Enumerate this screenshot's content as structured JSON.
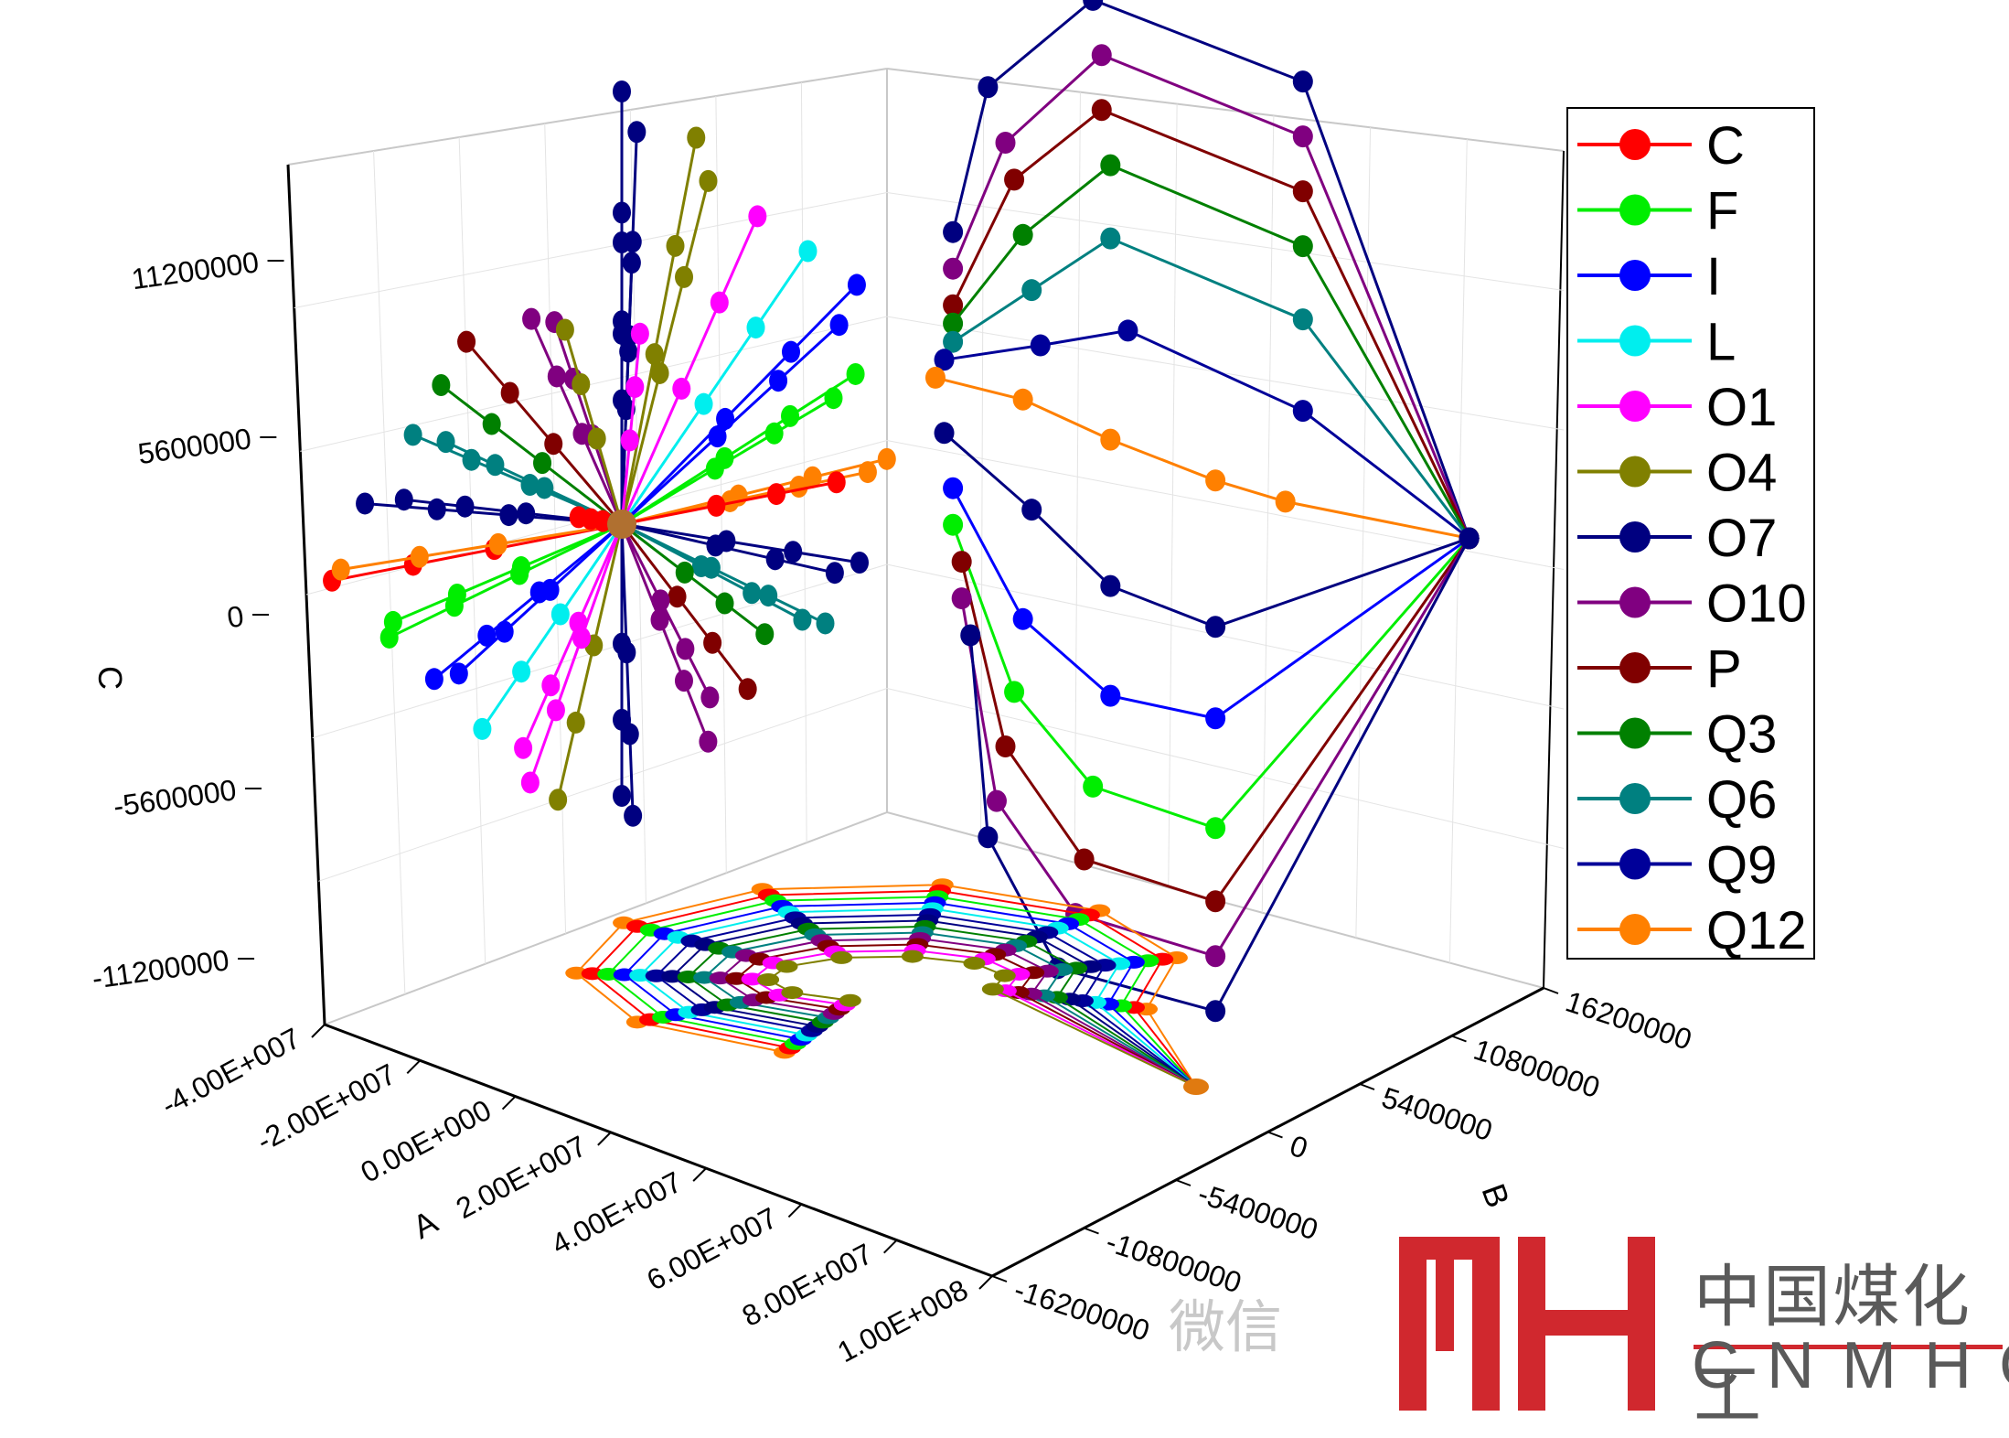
{
  "chart_data": {
    "type": "line",
    "subtype": "3d-projection",
    "title": "",
    "xlabel": "A",
    "ylabel": "B",
    "zlabel": "C",
    "axes": {
      "A": {
        "ticks": [
          "-4.00E+007",
          "-2.00E+007",
          "0.00E+000",
          "2.00E+007",
          "4.00E+007",
          "6.00E+007",
          "8.00E+007",
          "1.00E+008"
        ],
        "range": [
          -40000000,
          100000000
        ]
      },
      "B": {
        "ticks": [
          "-16200000",
          "-10800000",
          "-5400000",
          "0",
          "5400000",
          "10800000",
          "16200000"
        ],
        "range": [
          -16200000,
          16200000
        ]
      },
      "C": {
        "ticks": [
          "-11200000",
          "-5600000",
          "0",
          "5600000",
          "11200000"
        ],
        "range": [
          -14000000,
          14000000
        ]
      }
    },
    "grid": true,
    "legend_position": "top-right",
    "series": [
      {
        "name": "C",
        "color": "#ff0000"
      },
      {
        "name": "F",
        "color": "#00ee00"
      },
      {
        "name": "I",
        "color": "#0000ff"
      },
      {
        "name": "L",
        "color": "#00eeee"
      },
      {
        "name": "O1",
        "color": "#ff00ff"
      },
      {
        "name": "O4",
        "color": "#808000"
      },
      {
        "name": "O7",
        "color": "#000080"
      },
      {
        "name": "O10",
        "color": "#800080"
      },
      {
        "name": "P",
        "color": "#800000"
      },
      {
        "name": "Q3",
        "color": "#008000"
      },
      {
        "name": "Q6",
        "color": "#008080"
      },
      {
        "name": "Q9",
        "color": "#000099"
      },
      {
        "name": "Q12",
        "color": "#ff8000"
      }
    ],
    "panels": {
      "back_wall_BC": {
        "note": "right wall projection, values as (B, C); series share endpoints",
        "start": [
          -15000000,
          5000000
        ],
        "end": [
          15500000,
          1200000
        ],
        "profiles": [
          {
            "series": "O7",
            "points": [
              [
                -14000000,
                9000000
              ],
              [
                -12000000,
                13000000
              ],
              [
                -6000000,
                15500000
              ],
              [
                6000000,
                13500000
              ],
              [
                15500000,
                1200000
              ]
            ]
          },
          {
            "series": "O10",
            "points": [
              [
                -14000000,
                8000000
              ],
              [
                -11000000,
                11500000
              ],
              [
                -5500000,
                14000000
              ],
              [
                6000000,
                12000000
              ],
              [
                15500000,
                1200000
              ]
            ]
          },
          {
            "series": "P",
            "points": [
              [
                -14000000,
                7000000
              ],
              [
                -10500000,
                10500000
              ],
              [
                -5500000,
                12500000
              ],
              [
                6000000,
                10500000
              ],
              [
                15500000,
                1200000
              ]
            ]
          },
          {
            "series": "Q3",
            "points": [
              [
                -14000000,
                6500000
              ],
              [
                -10000000,
                9000000
              ],
              [
                -5000000,
                11000000
              ],
              [
                6000000,
                9000000
              ],
              [
                15500000,
                1200000
              ]
            ]
          },
          {
            "series": "Q6",
            "points": [
              [
                -14000000,
                6000000
              ],
              [
                -9500000,
                7500000
              ],
              [
                -5000000,
                9000000
              ],
              [
                6000000,
                7000000
              ],
              [
                15500000,
                1200000
              ]
            ]
          },
          {
            "series": "Q9",
            "points": [
              [
                -14500000,
                5500000
              ],
              [
                -9000000,
                6000000
              ],
              [
                -4000000,
                6500000
              ],
              [
                6000000,
                4500000
              ],
              [
                15500000,
                1200000
              ]
            ]
          },
          {
            "series": "Q12",
            "points": [
              [
                -15000000,
                5000000
              ],
              [
                -10000000,
                4500000
              ],
              [
                -5000000,
                3500000
              ],
              [
                1000000,
                2500000
              ],
              [
                5000000,
                2000000
              ],
              [
                15500000,
                1200000
              ]
            ]
          },
          {
            "series": "O7",
            "points": [
              [
                -14500000,
                3500000
              ],
              [
                -9500000,
                1500000
              ],
              [
                -5000000,
                -500000
              ],
              [
                1000000,
                -1500000
              ],
              [
                15500000,
                1200000
              ]
            ]
          },
          {
            "series": "I",
            "points": [
              [
                -14000000,
                2000000
              ],
              [
                -10000000,
                -1500000
              ],
              [
                -5000000,
                -3500000
              ],
              [
                1000000,
                -4000000
              ],
              [
                15500000,
                1200000
              ]
            ]
          },
          {
            "series": "F",
            "points": [
              [
                -14000000,
                1000000
              ],
              [
                -10500000,
                -3500000
              ],
              [
                -6000000,
                -6000000
              ],
              [
                1000000,
                -7000000
              ],
              [
                15500000,
                1200000
              ]
            ]
          },
          {
            "series": "P",
            "points": [
              [
                -13500000,
                0
              ],
              [
                -11000000,
                -5000000
              ],
              [
                -6500000,
                -8000000
              ],
              [
                1000000,
                -9000000
              ],
              [
                15500000,
                1200000
              ]
            ]
          },
          {
            "series": "O10",
            "points": [
              [
                -13500000,
                -1000000
              ],
              [
                -11500000,
                -6500000
              ],
              [
                -7000000,
                -9500000
              ],
              [
                1000000,
                -10500000
              ],
              [
                15500000,
                1200000
              ]
            ]
          },
          {
            "series": "O7",
            "points": [
              [
                -13000000,
                -2000000
              ],
              [
                -12000000,
                -7500000
              ],
              [
                -8000000,
                -11000000
              ],
              [
                1000000,
                -12000000
              ],
              [
                15500000,
                1200000
              ]
            ]
          }
        ]
      },
      "back_wall_AC": {
        "note": "left wall projection, radial rays through the centre (A≈0, C≈0); each series drawn as a ray with three markers",
        "centre": [
          0,
          0
        ]
      },
      "floor_AB": {
        "note": "floor projection, values as (A, B); all series converge at a common endpoint",
        "end": [
          95000000,
          15500000
        ]
      }
    }
  },
  "watermark": {
    "wechat": "微信",
    "logo_cn": "中国煤化工",
    "logo_en": "CNMHG",
    "logo_color": "#d0282e"
  }
}
